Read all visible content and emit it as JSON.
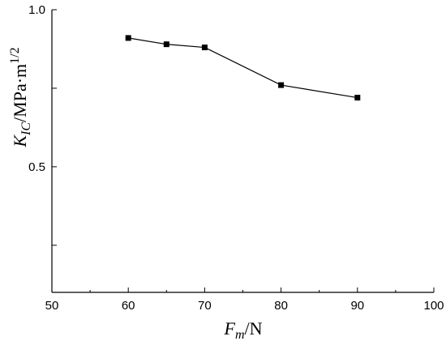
{
  "chart_data": {
    "type": "line",
    "x": [
      60,
      65,
      70,
      80,
      90
    ],
    "series": [
      {
        "values": [
          0.91,
          0.89,
          0.88,
          0.76,
          0.72
        ]
      }
    ],
    "xlim": [
      50,
      100
    ],
    "ylim": [
      0.1,
      1.0
    ],
    "xticks": [
      50,
      60,
      70,
      80,
      90,
      100
    ],
    "yticks": [
      0.5,
      1.0
    ],
    "xtick_labels": [
      "50",
      "60",
      "70",
      "80",
      "90",
      "100"
    ],
    "ytick_labels": [
      "0.5",
      "1.0"
    ],
    "xlabel": {
      "main": "F",
      "sub": "m",
      "unit": "/N"
    },
    "ylabel": {
      "main": "K",
      "sub": "IC",
      "unit": "/MPa·m",
      "sup": "1/2"
    },
    "marker": "square",
    "grid": false,
    "legend": false
  }
}
